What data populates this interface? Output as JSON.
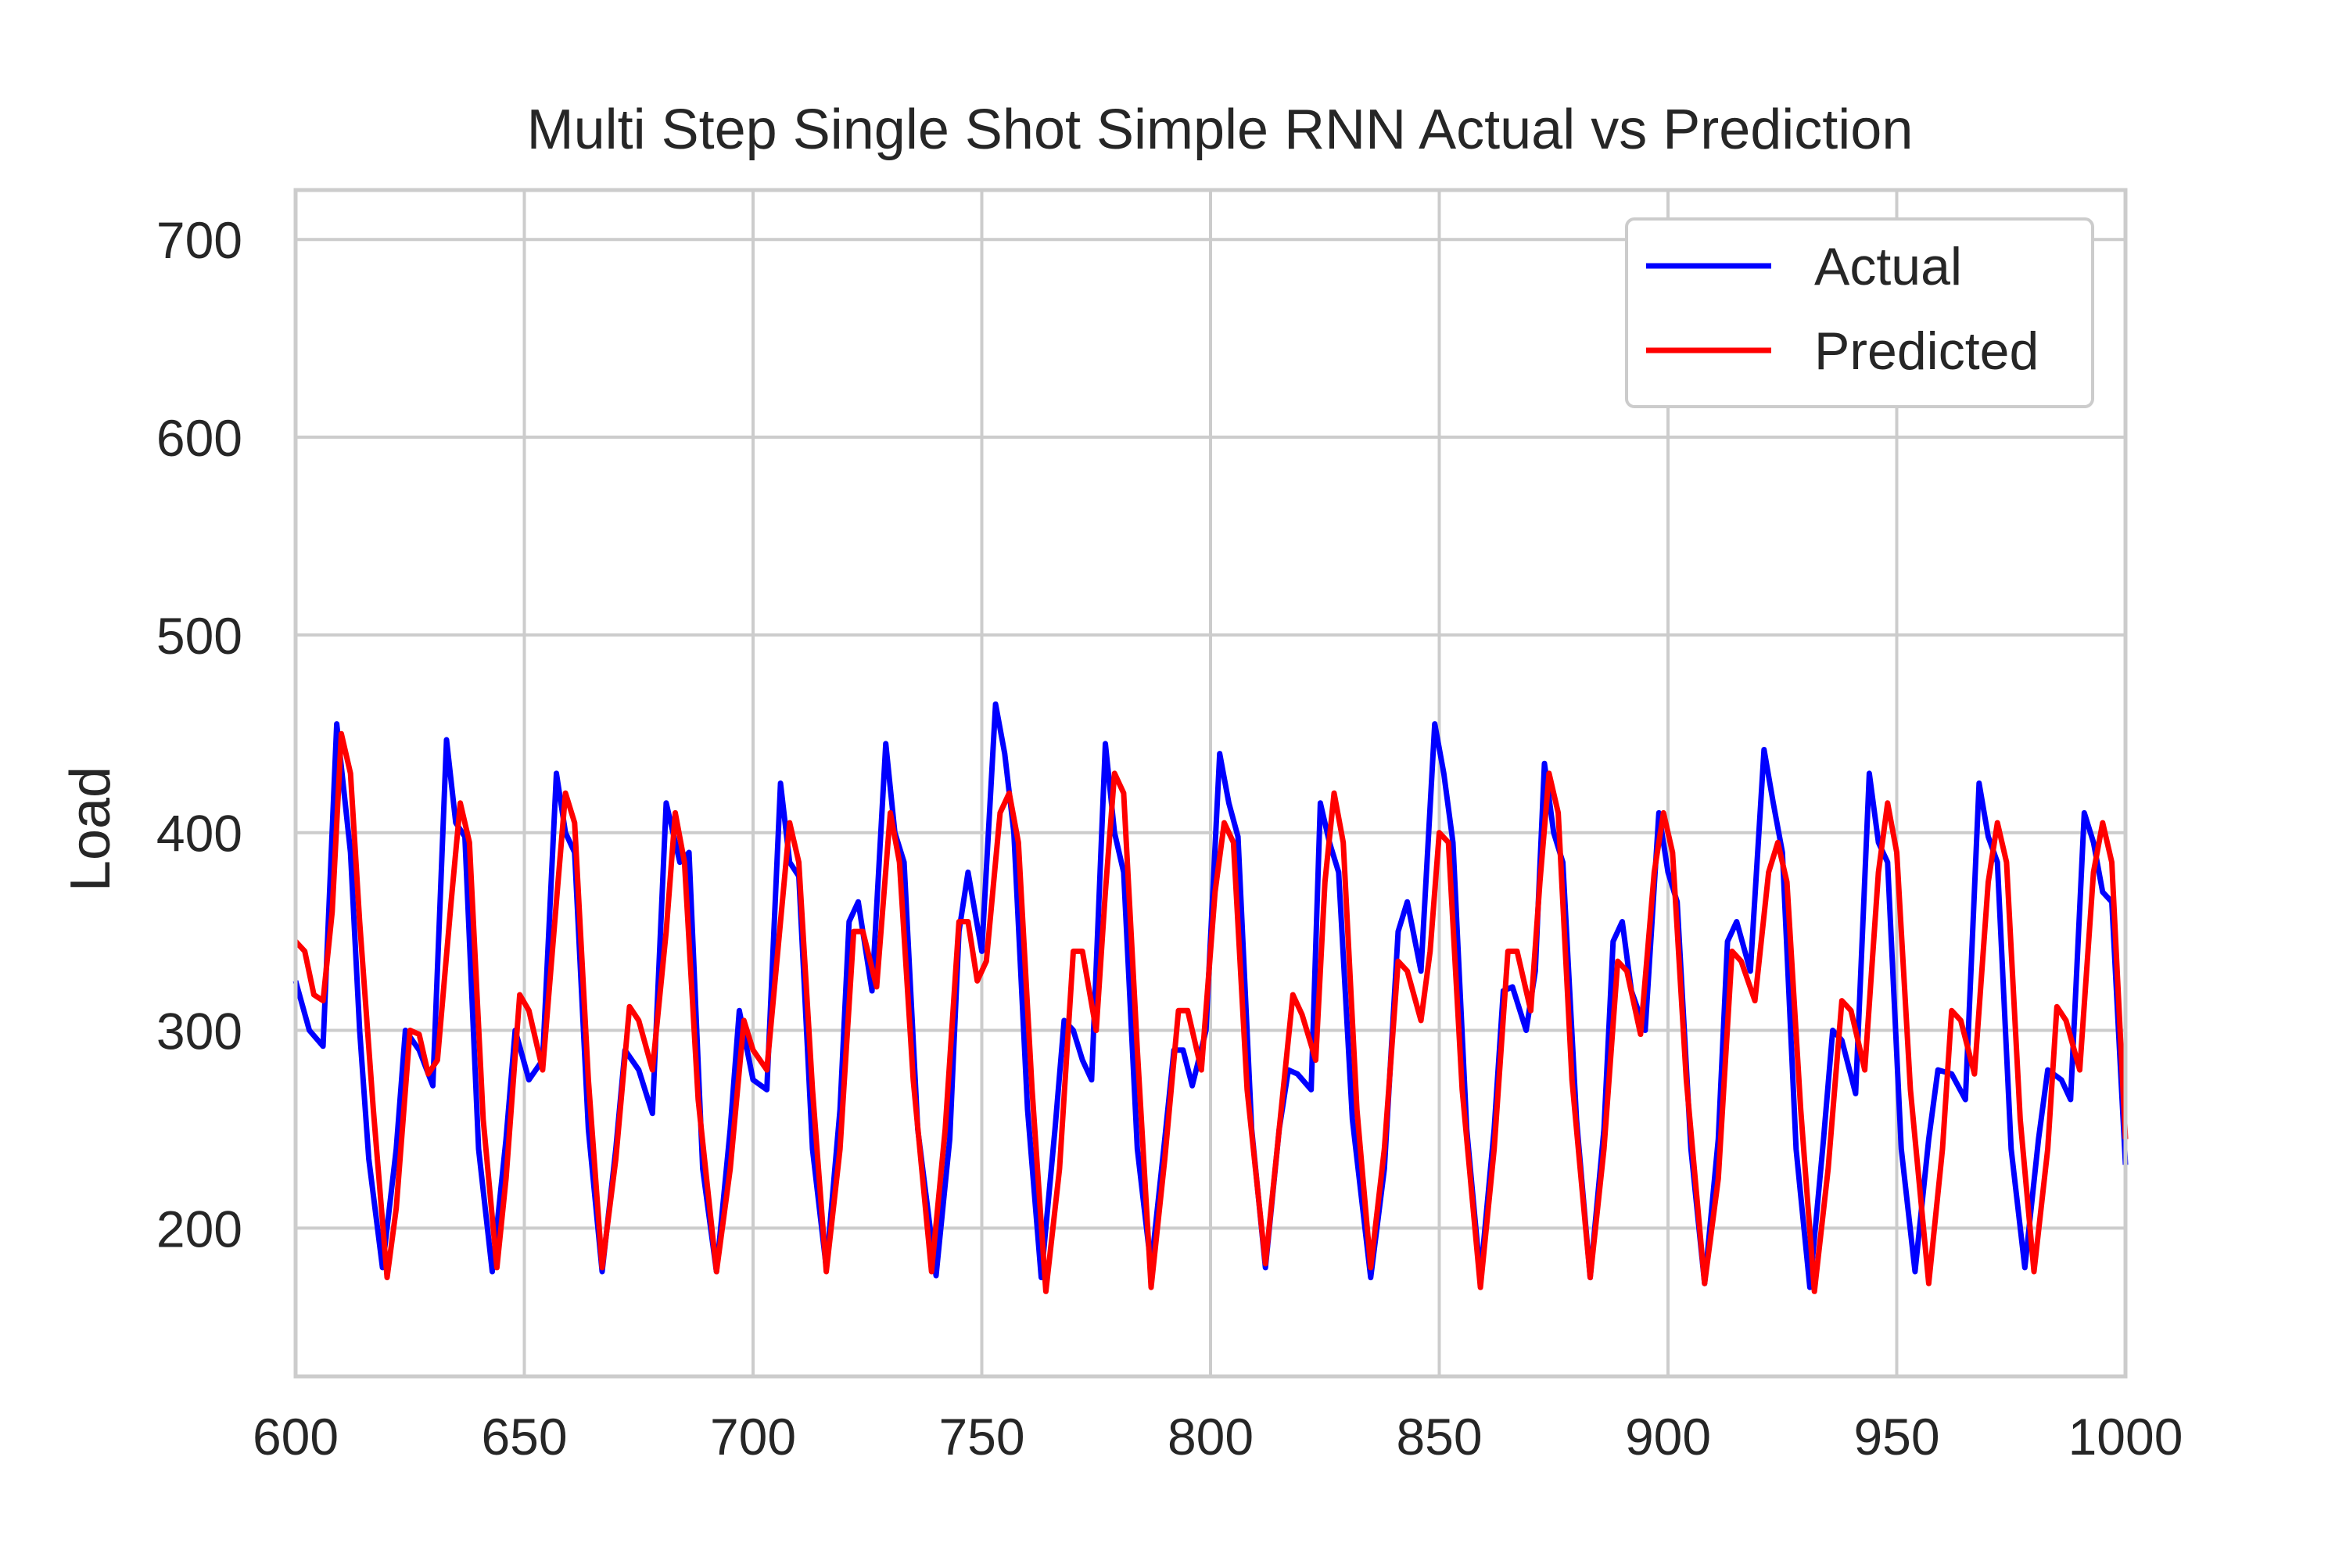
{
  "chart_data": {
    "type": "line",
    "title": "Multi Step Single Shot Simple RNN Actual vs Prediction",
    "xlabel": "",
    "ylabel": "Load",
    "xlim": [
      600,
      1000
    ],
    "ylim": [
      125,
      725
    ],
    "x_ticks": [
      600,
      650,
      700,
      750,
      800,
      850,
      900,
      950,
      1000
    ],
    "y_ticks": [
      200,
      300,
      400,
      500,
      600,
      700
    ],
    "grid": true,
    "legend_position": "top-right",
    "series": [
      {
        "name": "Actual",
        "color": "#0000ff",
        "points": [
          [
            600,
            325
          ],
          [
            603,
            300
          ],
          [
            606,
            292
          ],
          [
            609,
            455
          ],
          [
            612,
            390
          ],
          [
            614,
            300
          ],
          [
            616,
            235
          ],
          [
            619,
            180
          ],
          [
            622,
            240
          ],
          [
            624,
            300
          ],
          [
            627,
            290
          ],
          [
            630,
            272
          ],
          [
            633,
            447
          ],
          [
            635,
            405
          ],
          [
            637,
            398
          ],
          [
            640,
            240
          ],
          [
            643,
            178
          ],
          [
            646,
            245
          ],
          [
            648,
            300
          ],
          [
            651,
            275
          ],
          [
            654,
            285
          ],
          [
            657,
            430
          ],
          [
            659,
            400
          ],
          [
            661,
            390
          ],
          [
            664,
            250
          ],
          [
            667,
            178
          ],
          [
            670,
            240
          ],
          [
            672,
            290
          ],
          [
            675,
            280
          ],
          [
            678,
            258
          ],
          [
            681,
            415
          ],
          [
            684,
            385
          ],
          [
            686,
            390
          ],
          [
            689,
            230
          ],
          [
            692,
            178
          ],
          [
            695,
            250
          ],
          [
            697,
            310
          ],
          [
            700,
            275
          ],
          [
            703,
            270
          ],
          [
            706,
            425
          ],
          [
            708,
            385
          ],
          [
            710,
            378
          ],
          [
            713,
            240
          ],
          [
            716,
            180
          ],
          [
            719,
            260
          ],
          [
            721,
            355
          ],
          [
            723,
            365
          ],
          [
            726,
            320
          ],
          [
            729,
            445
          ],
          [
            731,
            400
          ],
          [
            733,
            385
          ],
          [
            736,
            250
          ],
          [
            740,
            176
          ],
          [
            743,
            245
          ],
          [
            745,
            350
          ],
          [
            747,
            380
          ],
          [
            750,
            340
          ],
          [
            753,
            465
          ],
          [
            755,
            440
          ],
          [
            757,
            400
          ],
          [
            760,
            260
          ],
          [
            763,
            175
          ],
          [
            766,
            250
          ],
          [
            768,
            305
          ],
          [
            770,
            300
          ],
          [
            772,
            285
          ],
          [
            774,
            275
          ],
          [
            777,
            445
          ],
          [
            779,
            400
          ],
          [
            781,
            380
          ],
          [
            784,
            240
          ],
          [
            787,
            180
          ],
          [
            790,
            245
          ],
          [
            792,
            290
          ],
          [
            794,
            290
          ],
          [
            796,
            272
          ],
          [
            799,
            300
          ],
          [
            802,
            440
          ],
          [
            804,
            415
          ],
          [
            806,
            398
          ],
          [
            809,
            250
          ],
          [
            812,
            180
          ],
          [
            815,
            250
          ],
          [
            817,
            280
          ],
          [
            819,
            278
          ],
          [
            822,
            270
          ],
          [
            824,
            415
          ],
          [
            826,
            395
          ],
          [
            828,
            380
          ],
          [
            831,
            255
          ],
          [
            835,
            175
          ],
          [
            838,
            230
          ],
          [
            841,
            350
          ],
          [
            843,
            365
          ],
          [
            846,
            330
          ],
          [
            849,
            455
          ],
          [
            851,
            430
          ],
          [
            853,
            395
          ],
          [
            856,
            250
          ],
          [
            859,
            175
          ],
          [
            862,
            250
          ],
          [
            864,
            320
          ],
          [
            866,
            322
          ],
          [
            869,
            300
          ],
          [
            871,
            330
          ],
          [
            873,
            435
          ],
          [
            875,
            400
          ],
          [
            877,
            385
          ],
          [
            880,
            255
          ],
          [
            883,
            175
          ],
          [
            886,
            250
          ],
          [
            888,
            345
          ],
          [
            890,
            355
          ],
          [
            892,
            320
          ],
          [
            895,
            300
          ],
          [
            898,
            410
          ],
          [
            900,
            380
          ],
          [
            902,
            365
          ],
          [
            905,
            240
          ],
          [
            908,
            172
          ],
          [
            911,
            245
          ],
          [
            913,
            345
          ],
          [
            915,
            355
          ],
          [
            918,
            330
          ],
          [
            921,
            442
          ],
          [
            923,
            415
          ],
          [
            925,
            390
          ],
          [
            928,
            240
          ],
          [
            931,
            170
          ],
          [
            934,
            245
          ],
          [
            936,
            300
          ],
          [
            938,
            295
          ],
          [
            941,
            268
          ],
          [
            944,
            430
          ],
          [
            946,
            395
          ],
          [
            948,
            385
          ],
          [
            951,
            240
          ],
          [
            954,
            178
          ],
          [
            957,
            245
          ],
          [
            959,
            280
          ],
          [
            962,
            278
          ],
          [
            965,
            265
          ],
          [
            968,
            425
          ],
          [
            970,
            398
          ],
          [
            972,
            385
          ],
          [
            975,
            240
          ],
          [
            978,
            180
          ],
          [
            981,
            245
          ],
          [
            983,
            280
          ],
          [
            986,
            275
          ],
          [
            988,
            265
          ],
          [
            991,
            410
          ],
          [
            993,
            395
          ],
          [
            995,
            370
          ],
          [
            997,
            365
          ],
          [
            1000,
            232
          ]
        ]
      },
      {
        "name": "Predicted",
        "color": "#ff0000",
        "points": [
          [
            600,
            345
          ],
          [
            602,
            340
          ],
          [
            604,
            318
          ],
          [
            606,
            315
          ],
          [
            608,
            360
          ],
          [
            610,
            450
          ],
          [
            612,
            430
          ],
          [
            614,
            355
          ],
          [
            617,
            260
          ],
          [
            620,
            175
          ],
          [
            622,
            210
          ],
          [
            625,
            300
          ],
          [
            627,
            298
          ],
          [
            629,
            278
          ],
          [
            631,
            285
          ],
          [
            634,
            365
          ],
          [
            636,
            415
          ],
          [
            638,
            395
          ],
          [
            641,
            255
          ],
          [
            644,
            180
          ],
          [
            646,
            225
          ],
          [
            649,
            318
          ],
          [
            651,
            310
          ],
          [
            654,
            280
          ],
          [
            657,
            365
          ],
          [
            659,
            420
          ],
          [
            661,
            405
          ],
          [
            664,
            275
          ],
          [
            667,
            180
          ],
          [
            670,
            235
          ],
          [
            673,
            312
          ],
          [
            675,
            305
          ],
          [
            678,
            280
          ],
          [
            681,
            350
          ],
          [
            683,
            410
          ],
          [
            685,
            385
          ],
          [
            688,
            265
          ],
          [
            692,
            178
          ],
          [
            695,
            230
          ],
          [
            698,
            305
          ],
          [
            700,
            290
          ],
          [
            703,
            280
          ],
          [
            706,
            355
          ],
          [
            708,
            405
          ],
          [
            710,
            385
          ],
          [
            713,
            270
          ],
          [
            716,
            178
          ],
          [
            719,
            240
          ],
          [
            722,
            350
          ],
          [
            724,
            350
          ],
          [
            727,
            322
          ],
          [
            730,
            410
          ],
          [
            732,
            385
          ],
          [
            735,
            275
          ],
          [
            739,
            178
          ],
          [
            742,
            250
          ],
          [
            745,
            355
          ],
          [
            747,
            355
          ],
          [
            749,
            325
          ],
          [
            751,
            335
          ],
          [
            754,
            410
          ],
          [
            756,
            420
          ],
          [
            758,
            395
          ],
          [
            761,
            270
          ],
          [
            764,
            168
          ],
          [
            767,
            230
          ],
          [
            770,
            340
          ],
          [
            772,
            340
          ],
          [
            775,
            300
          ],
          [
            777,
            370
          ],
          [
            779,
            430
          ],
          [
            781,
            420
          ],
          [
            784,
            290
          ],
          [
            787,
            170
          ],
          [
            790,
            235
          ],
          [
            793,
            310
          ],
          [
            795,
            310
          ],
          [
            798,
            280
          ],
          [
            801,
            370
          ],
          [
            803,
            405
          ],
          [
            805,
            395
          ],
          [
            808,
            270
          ],
          [
            812,
            182
          ],
          [
            815,
            250
          ],
          [
            818,
            318
          ],
          [
            820,
            308
          ],
          [
            823,
            285
          ],
          [
            825,
            375
          ],
          [
            827,
            420
          ],
          [
            829,
            395
          ],
          [
            832,
            260
          ],
          [
            835,
            180
          ],
          [
            838,
            240
          ],
          [
            841,
            335
          ],
          [
            843,
            330
          ],
          [
            846,
            305
          ],
          [
            848,
            340
          ],
          [
            850,
            400
          ],
          [
            852,
            395
          ],
          [
            855,
            270
          ],
          [
            859,
            170
          ],
          [
            862,
            240
          ],
          [
            865,
            340
          ],
          [
            867,
            340
          ],
          [
            870,
            310
          ],
          [
            872,
            375
          ],
          [
            874,
            430
          ],
          [
            876,
            410
          ],
          [
            879,
            275
          ],
          [
            883,
            175
          ],
          [
            886,
            240
          ],
          [
            889,
            335
          ],
          [
            891,
            330
          ],
          [
            894,
            298
          ],
          [
            897,
            380
          ],
          [
            899,
            410
          ],
          [
            901,
            390
          ],
          [
            904,
            275
          ],
          [
            908,
            172
          ],
          [
            911,
            225
          ],
          [
            914,
            340
          ],
          [
            916,
            335
          ],
          [
            919,
            315
          ],
          [
            922,
            380
          ],
          [
            924,
            395
          ],
          [
            926,
            375
          ],
          [
            929,
            260
          ],
          [
            932,
            168
          ],
          [
            935,
            230
          ],
          [
            938,
            315
          ],
          [
            940,
            310
          ],
          [
            943,
            280
          ],
          [
            946,
            380
          ],
          [
            948,
            415
          ],
          [
            950,
            390
          ],
          [
            953,
            270
          ],
          [
            957,
            172
          ],
          [
            960,
            240
          ],
          [
            962,
            310
          ],
          [
            964,
            305
          ],
          [
            967,
            278
          ],
          [
            970,
            375
          ],
          [
            972,
            405
          ],
          [
            974,
            385
          ],
          [
            977,
            255
          ],
          [
            980,
            178
          ],
          [
            983,
            240
          ],
          [
            985,
            312
          ],
          [
            987,
            305
          ],
          [
            990,
            280
          ],
          [
            993,
            380
          ],
          [
            995,
            405
          ],
          [
            997,
            385
          ],
          [
            1000,
            245
          ]
        ]
      }
    ]
  }
}
